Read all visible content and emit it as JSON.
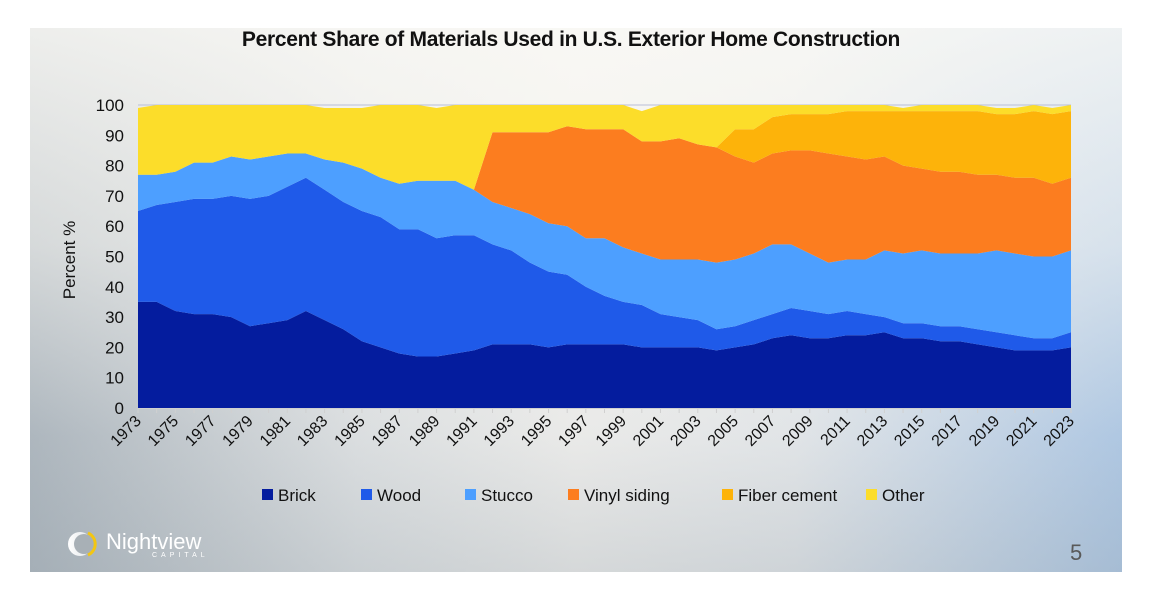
{
  "slide": {
    "page_number": "5",
    "logo": {
      "name": "Nightview",
      "subtitle": "CAPITAL"
    }
  },
  "colors": {
    "Brick": "#041c9e",
    "Wood": "#1f5ae9",
    "Stucco": "#4d9fff",
    "Vinyl siding": "#fc7d1f",
    "Fiber cement": "#fdb30a",
    "Other": "#fcdd2a"
  },
  "chart_data": {
    "type": "area",
    "stacked": true,
    "title": "Percent Share of Materials Used in U.S. Exterior Home Construction",
    "xlabel": "",
    "ylabel": "Percent %",
    "ylim": [
      0,
      100
    ],
    "yticks": [
      0,
      10,
      20,
      30,
      40,
      50,
      60,
      70,
      80,
      90,
      100
    ],
    "xtick_labels": [
      "1973",
      "1975",
      "1977",
      "1979",
      "1981",
      "1983",
      "1985",
      "1987",
      "1989",
      "1991",
      "1993",
      "1995",
      "1997",
      "1999",
      "2001",
      "2003",
      "2005",
      "2007",
      "2009",
      "2011",
      "2013",
      "2015",
      "2017",
      "2019",
      "2021",
      "2023"
    ],
    "legend_position": "bottom",
    "grid": false,
    "x": [
      1973,
      1974,
      1975,
      1976,
      1977,
      1978,
      1979,
      1980,
      1981,
      1982,
      1983,
      1984,
      1985,
      1986,
      1987,
      1988,
      1989,
      1990,
      1991,
      1992,
      1993,
      1994,
      1995,
      1996,
      1997,
      1998,
      1999,
      2000,
      2001,
      2002,
      2003,
      2004,
      2005,
      2006,
      2007,
      2008,
      2009,
      2010,
      2011,
      2012,
      2013,
      2014,
      2015,
      2016,
      2017,
      2018,
      2019,
      2020,
      2021,
      2022,
      2023
    ],
    "series": [
      {
        "name": "Brick",
        "values": [
          35,
          35,
          32,
          31,
          31,
          30,
          27,
          28,
          29,
          32,
          29,
          26,
          22,
          20,
          18,
          17,
          17,
          18,
          19,
          21,
          21,
          21,
          20,
          21,
          21,
          21,
          21,
          20,
          20,
          20,
          20,
          19,
          20,
          21,
          23,
          24,
          23,
          23,
          24,
          24,
          25,
          23,
          23,
          22,
          22,
          21,
          20,
          19,
          19,
          19,
          20
        ]
      },
      {
        "name": "Wood",
        "values": [
          30,
          32,
          36,
          38,
          38,
          40,
          42,
          42,
          44,
          44,
          43,
          42,
          43,
          43,
          41,
          42,
          39,
          39,
          38,
          33,
          31,
          27,
          25,
          23,
          19,
          16,
          14,
          14,
          11,
          10,
          9,
          7,
          7,
          8,
          8,
          9,
          9,
          8,
          8,
          7,
          5,
          5,
          5,
          5,
          5,
          5,
          5,
          5,
          4,
          4,
          5
        ]
      },
      {
        "name": "Stucco",
        "values": [
          12,
          10,
          10,
          12,
          12,
          13,
          13,
          13,
          11,
          8,
          10,
          13,
          14,
          13,
          15,
          16,
          19,
          18,
          15,
          14,
          14,
          16,
          16,
          16,
          16,
          19,
          18,
          17,
          18,
          19,
          20,
          22,
          22,
          22,
          23,
          21,
          19,
          17,
          17,
          18,
          22,
          23,
          24,
          24,
          24,
          25,
          27,
          27,
          27,
          27,
          27
        ]
      },
      {
        "name": "Vinyl siding",
        "values": [
          0,
          0,
          0,
          0,
          0,
          0,
          0,
          0,
          0,
          0,
          0,
          0,
          0,
          0,
          0,
          0,
          0,
          0,
          0,
          23,
          25,
          27,
          30,
          33,
          36,
          36,
          39,
          37,
          39,
          40,
          38,
          38,
          34,
          30,
          30,
          31,
          34,
          36,
          34,
          33,
          31,
          29,
          27,
          27,
          27,
          26,
          25,
          25,
          26,
          24,
          24
        ]
      },
      {
        "name": "Fiber cement",
        "values": [
          0,
          0,
          0,
          0,
          0,
          0,
          0,
          0,
          0,
          0,
          0,
          0,
          0,
          0,
          0,
          0,
          0,
          0,
          0,
          0,
          0,
          0,
          0,
          0,
          0,
          0,
          0,
          0,
          0,
          0,
          0,
          0,
          9,
          11,
          12,
          12,
          12,
          13,
          15,
          16,
          15,
          18,
          19,
          20,
          20,
          21,
          20,
          21,
          22,
          23,
          22
        ]
      },
      {
        "name": "Other",
        "values": [
          22,
          23,
          22,
          19,
          19,
          17,
          18,
          17,
          16,
          16,
          17,
          18,
          20,
          24,
          26,
          25,
          24,
          25,
          28,
          9,
          9,
          9,
          9,
          7,
          8,
          8,
          8,
          10,
          12,
          11,
          13,
          14,
          8,
          8,
          4,
          3,
          3,
          3,
          2,
          2,
          2,
          1,
          2,
          2,
          2,
          2,
          2,
          2,
          2,
          2,
          2
        ]
      }
    ]
  }
}
